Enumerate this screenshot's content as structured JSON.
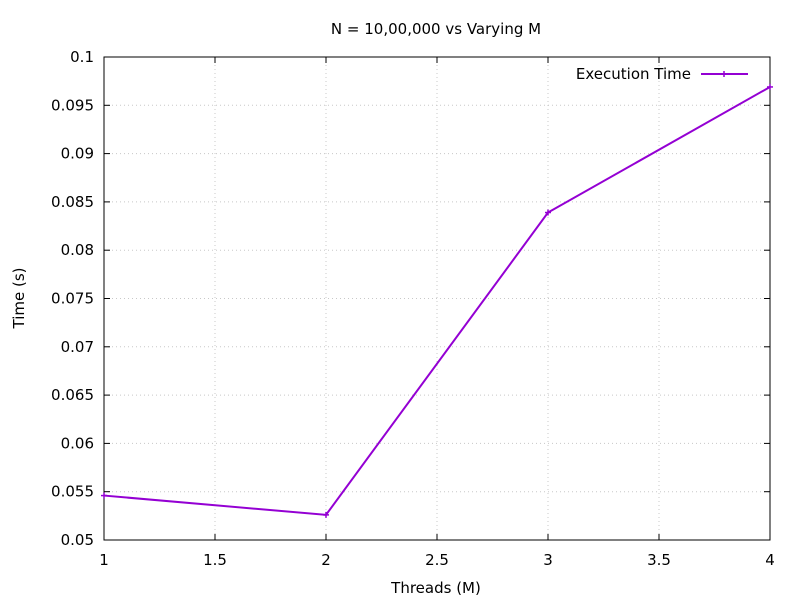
{
  "chart_data": {
    "type": "line",
    "title": "N = 10,00,000 vs Varying M",
    "xlabel": "Threads (M)",
    "ylabel": "Time (s)",
    "xlim": [
      1,
      4
    ],
    "ylim": [
      0.05,
      0.1
    ],
    "x_ticks": [
      1,
      1.5,
      2,
      2.5,
      3,
      3.5,
      4
    ],
    "x_tick_labels": [
      "1",
      "1.5",
      "2",
      "2.5",
      "3",
      "3.5",
      "4"
    ],
    "y_ticks": [
      0.05,
      0.055,
      0.06,
      0.065,
      0.07,
      0.075,
      0.08,
      0.085,
      0.09,
      0.095,
      0.1
    ],
    "y_tick_labels": [
      "0.05",
      "0.055",
      "0.06",
      "0.065",
      "0.07",
      "0.075",
      "0.08",
      "0.085",
      "0.09",
      "0.095",
      "0.1"
    ],
    "grid": true,
    "legend_position": "top-right",
    "series": [
      {
        "name": "Execution Time",
        "color": "#9400d3",
        "x": [
          1,
          2,
          3,
          4
        ],
        "y": [
          0.0546,
          0.0526,
          0.0839,
          0.0969
        ]
      }
    ]
  }
}
